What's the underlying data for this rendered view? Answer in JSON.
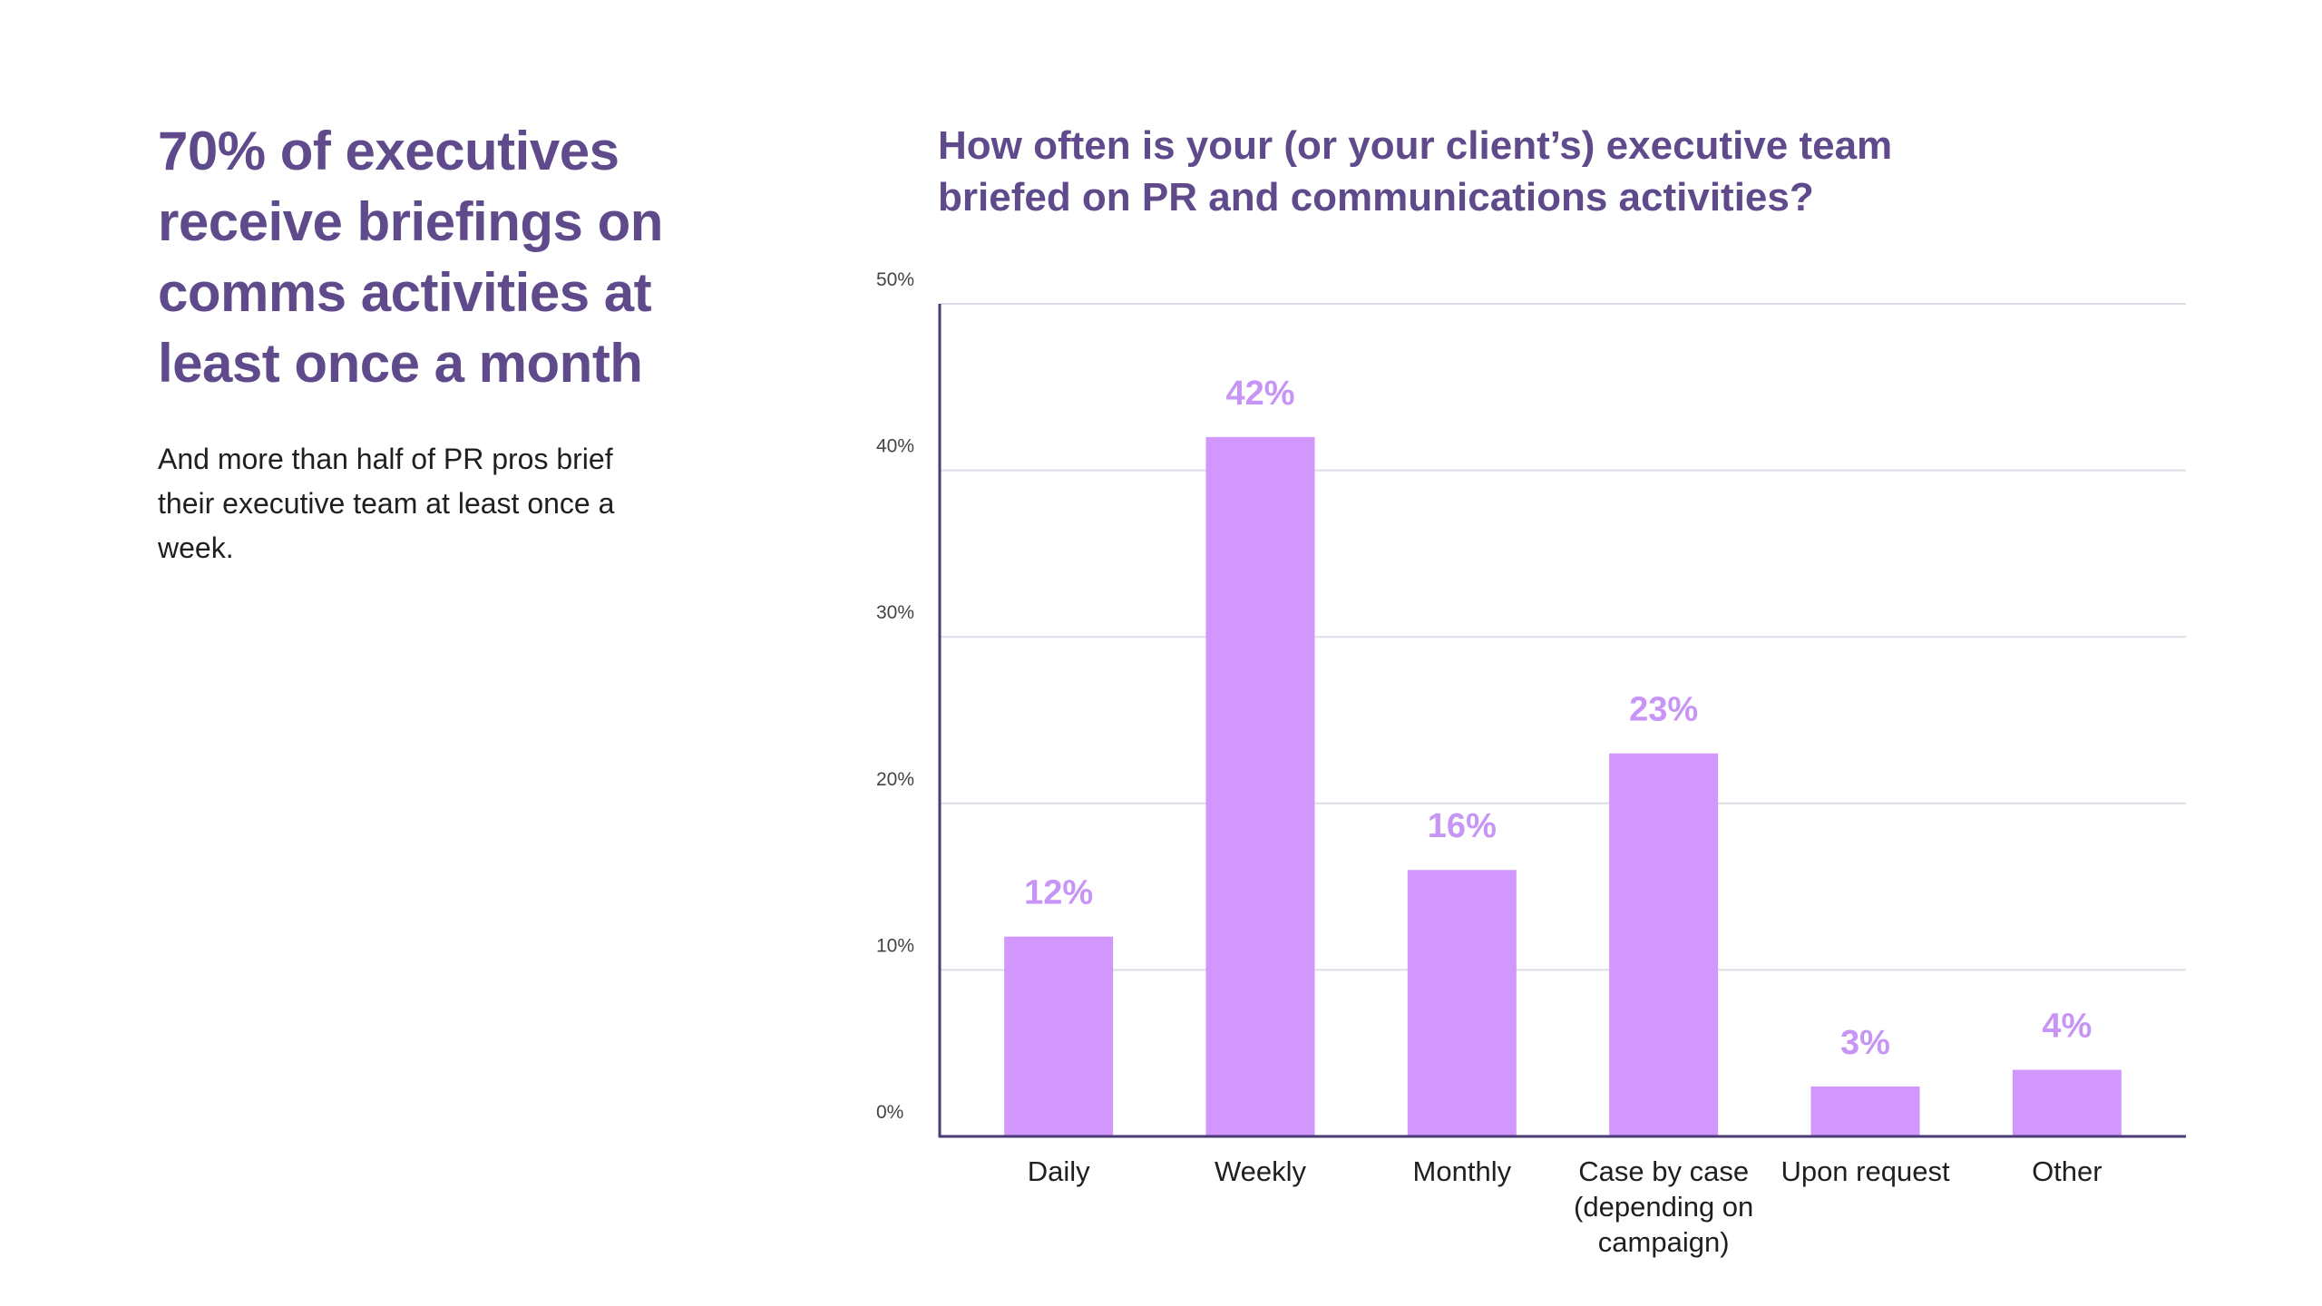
{
  "headline": "70% of executives receive briefings on comms activities at least once a month",
  "subtext": "And more than half of PR pros brief their executive team at least once a week.",
  "colors": {
    "headline": "#5f4a8b",
    "bar": "#d197fc",
    "data_label": "#c795f5",
    "axis": "#4b3a75",
    "grid": "#dedde6"
  },
  "chart_data": {
    "type": "bar",
    "title": "How often is your (or your client’s) executive team briefed on PR and communications activities?",
    "categories": [
      [
        "Daily"
      ],
      [
        "Weekly"
      ],
      [
        "Monthly"
      ],
      [
        "Case by case",
        "(depending on",
        "campaign)"
      ],
      [
        "Upon request"
      ],
      [
        "Other"
      ]
    ],
    "values": [
      12,
      42,
      16,
      23,
      3,
      4
    ],
    "data_labels": [
      "12%",
      "42%",
      "16%",
      "23%",
      "3%",
      "4%"
    ],
    "y_ticks": [
      "0%",
      "10%",
      "20%",
      "30%",
      "40%",
      "50%"
    ],
    "ylim": [
      0,
      50
    ],
    "grid": true,
    "legend": false
  }
}
